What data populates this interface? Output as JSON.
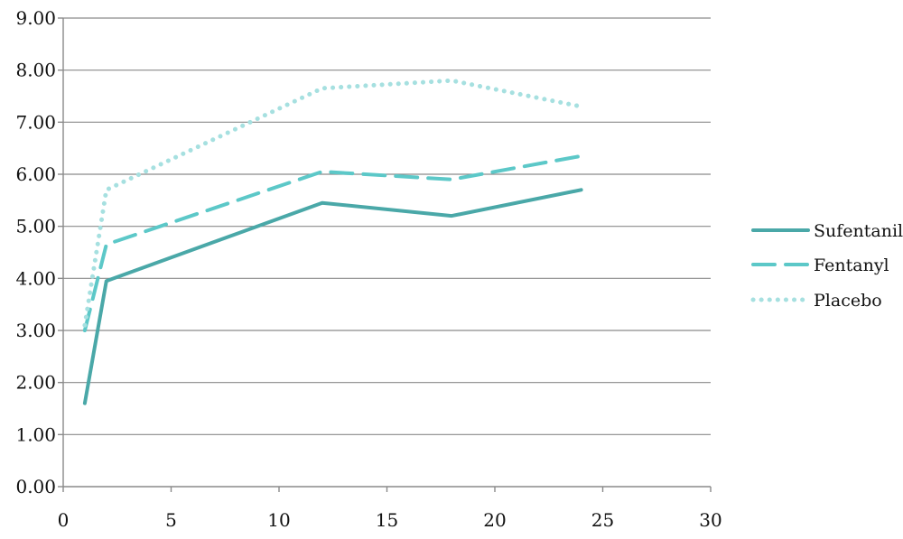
{
  "chart_data": {
    "type": "line",
    "title": "",
    "xlabel": "",
    "ylabel": "",
    "xlim": [
      0,
      30
    ],
    "ylim": [
      0,
      9
    ],
    "x_ticks": [
      "0",
      "5",
      "10",
      "15",
      "20",
      "25",
      "30"
    ],
    "y_ticks": [
      "0.00",
      "1.00",
      "2.00",
      "3.00",
      "4.00",
      "5.00",
      "6.00",
      "7.00",
      "8.00",
      "9.00"
    ],
    "grid": "horizontal",
    "legend_position": "right",
    "series": [
      {
        "name": "Sufentanil",
        "style": "solid",
        "color": "#4aa8a8",
        "x": [
          1,
          2,
          12,
          18,
          24
        ],
        "y": [
          1.6,
          3.95,
          5.45,
          5.2,
          5.7
        ]
      },
      {
        "name": "Fentanyl",
        "style": "dashed",
        "color": "#5cc8c8",
        "x": [
          1,
          2,
          12,
          18,
          24
        ],
        "y": [
          3.0,
          4.65,
          6.05,
          5.9,
          6.35
        ]
      },
      {
        "name": "Placebo",
        "style": "dotted",
        "color": "#a6e0e0",
        "x": [
          1,
          2,
          12,
          18,
          24
        ],
        "y": [
          3.1,
          5.7,
          7.65,
          7.8,
          7.3
        ]
      }
    ]
  }
}
